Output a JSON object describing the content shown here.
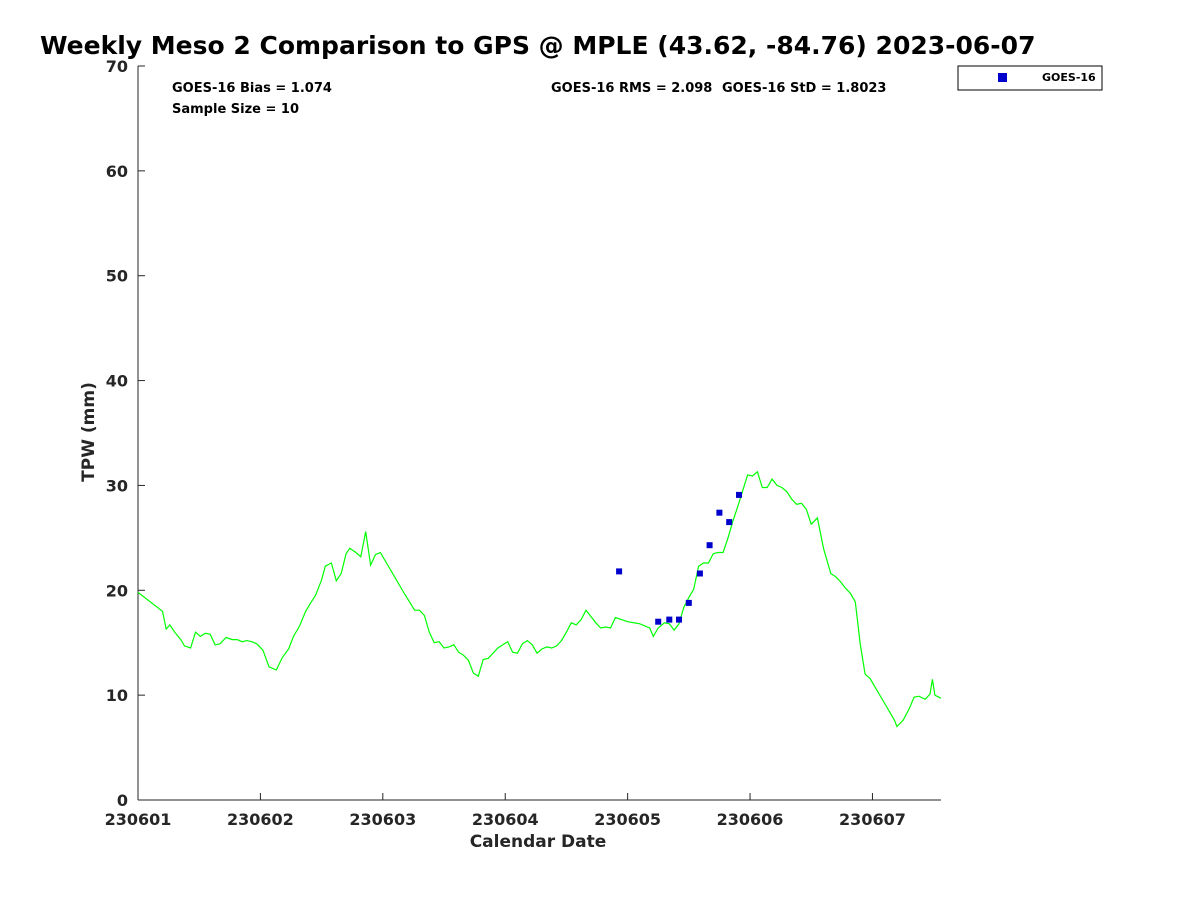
{
  "chart_data": {
    "type": "line",
    "title": "Weekly Meso 2 Comparison to GPS @ MPLE (43.62, -84.76) 2023-06-07",
    "xlabel": "Calendar Date",
    "ylabel": "TPW (mm)",
    "xlim": [
      230601,
      230607.56
    ],
    "ylim": [
      0,
      70
    ],
    "x_tick_values": [
      230601,
      230602,
      230603,
      230604,
      230605,
      230606,
      230607
    ],
    "x_tick_labels": [
      "230601",
      "230602",
      "230603",
      "230604",
      "230605",
      "230606",
      "230607"
    ],
    "y_tick_values": [
      0,
      10,
      20,
      30,
      40,
      50,
      60,
      70
    ],
    "y_tick_labels": [
      "0",
      "10",
      "20",
      "30",
      "40",
      "50",
      "60",
      "70"
    ],
    "grid": false,
    "legend_position": "top-right",
    "stats": {
      "bias": "GOES-16 Bias = 1.074",
      "rms": "GOES-16 RMS = 2.098",
      "std": "GOES-16 StD = 1.8023",
      "sample": "Sample Size = 10"
    },
    "series": [
      {
        "kind": "line",
        "color": "#00ff00",
        "points": [
          [
            230601.0,
            19.8
          ],
          [
            230601.2,
            18.0
          ],
          [
            230601.23,
            16.3
          ],
          [
            230601.26,
            16.7
          ],
          [
            230601.3,
            16.0
          ],
          [
            230601.35,
            15.3
          ],
          [
            230601.38,
            14.7
          ],
          [
            230601.43,
            14.5
          ],
          [
            230601.47,
            16.0
          ],
          [
            230601.51,
            15.6
          ],
          [
            230601.55,
            15.9
          ],
          [
            230601.59,
            15.8
          ],
          [
            230601.63,
            14.8
          ],
          [
            230601.67,
            14.9
          ],
          [
            230601.72,
            15.5
          ],
          [
            230601.77,
            15.3
          ],
          [
            230601.81,
            15.3
          ],
          [
            230601.85,
            15.1
          ],
          [
            230601.89,
            15.2
          ],
          [
            230601.93,
            15.1
          ],
          [
            230601.97,
            14.9
          ],
          [
            230602.02,
            14.3
          ],
          [
            230602.07,
            12.7
          ],
          [
            230602.13,
            12.4
          ],
          [
            230602.18,
            13.6
          ],
          [
            230602.23,
            14.4
          ],
          [
            230602.27,
            15.6
          ],
          [
            230602.32,
            16.6
          ],
          [
            230602.37,
            18.0
          ],
          [
            230602.41,
            18.8
          ],
          [
            230602.45,
            19.5
          ],
          [
            230602.5,
            21.0
          ],
          [
            230602.53,
            22.3
          ],
          [
            230602.58,
            22.6
          ],
          [
            230602.62,
            20.9
          ],
          [
            230602.66,
            21.6
          ],
          [
            230602.7,
            23.5
          ],
          [
            230602.73,
            24.0
          ],
          [
            230602.78,
            23.6
          ],
          [
            230602.82,
            23.2
          ],
          [
            230602.86,
            25.6
          ],
          [
            230602.9,
            22.4
          ],
          [
            230602.94,
            23.4
          ],
          [
            230602.98,
            23.6
          ],
          [
            230603.03,
            22.6
          ],
          [
            230603.1,
            21.2
          ],
          [
            230603.18,
            19.6
          ],
          [
            230603.26,
            18.1
          ],
          [
            230603.3,
            18.1
          ],
          [
            230603.34,
            17.6
          ],
          [
            230603.38,
            16.0
          ],
          [
            230603.42,
            15.0
          ],
          [
            230603.46,
            15.1
          ],
          [
            230603.5,
            14.5
          ],
          [
            230603.54,
            14.6
          ],
          [
            230603.58,
            14.8
          ],
          [
            230603.62,
            14.1
          ],
          [
            230603.66,
            13.8
          ],
          [
            230603.7,
            13.3
          ],
          [
            230603.74,
            12.1
          ],
          [
            230603.78,
            11.8
          ],
          [
            230603.82,
            13.4
          ],
          [
            230603.86,
            13.5
          ],
          [
            230603.9,
            14.0
          ],
          [
            230603.94,
            14.5
          ],
          [
            230603.98,
            14.8
          ],
          [
            230604.02,
            15.1
          ],
          [
            230604.06,
            14.1
          ],
          [
            230604.1,
            14.0
          ],
          [
            230604.14,
            14.9
          ],
          [
            230604.18,
            15.2
          ],
          [
            230604.22,
            14.8
          ],
          [
            230604.26,
            14.0
          ],
          [
            230604.3,
            14.4
          ],
          [
            230604.34,
            14.6
          ],
          [
            230604.38,
            14.5
          ],
          [
            230604.42,
            14.7
          ],
          [
            230604.46,
            15.2
          ],
          [
            230604.5,
            16.0
          ],
          [
            230604.54,
            16.9
          ],
          [
            230604.58,
            16.7
          ],
          [
            230604.62,
            17.2
          ],
          [
            230604.66,
            18.1
          ],
          [
            230604.7,
            17.5
          ],
          [
            230604.74,
            16.9
          ],
          [
            230604.78,
            16.4
          ],
          [
            230604.82,
            16.5
          ],
          [
            230604.86,
            16.4
          ],
          [
            230604.9,
            17.4
          ],
          [
            230604.95,
            17.2
          ],
          [
            230605.0,
            17.0
          ],
          [
            230605.1,
            16.8
          ],
          [
            230605.18,
            16.4
          ],
          [
            230605.21,
            15.6
          ],
          [
            230605.25,
            16.4
          ],
          [
            230605.3,
            16.9
          ],
          [
            230605.34,
            16.8
          ],
          [
            230605.38,
            16.2
          ],
          [
            230605.42,
            16.8
          ],
          [
            230605.46,
            18.4
          ],
          [
            230605.5,
            19.3
          ],
          [
            230605.54,
            20.1
          ],
          [
            230605.58,
            22.3
          ],
          [
            230605.62,
            22.6
          ],
          [
            230605.66,
            22.6
          ],
          [
            230605.7,
            23.5
          ],
          [
            230605.74,
            23.6
          ],
          [
            230605.78,
            23.6
          ],
          [
            230605.82,
            25.0
          ],
          [
            230605.86,
            26.6
          ],
          [
            230605.9,
            28.0
          ],
          [
            230605.94,
            29.5
          ],
          [
            230605.98,
            31.0
          ],
          [
            230606.02,
            30.9
          ],
          [
            230606.06,
            31.3
          ],
          [
            230606.1,
            29.8
          ],
          [
            230606.14,
            29.8
          ],
          [
            230606.18,
            30.6
          ],
          [
            230606.22,
            30.0
          ],
          [
            230606.26,
            29.8
          ],
          [
            230606.3,
            29.4
          ],
          [
            230606.34,
            28.7
          ],
          [
            230606.38,
            28.2
          ],
          [
            230606.42,
            28.3
          ],
          [
            230606.46,
            27.7
          ],
          [
            230606.5,
            26.3
          ],
          [
            230606.55,
            26.9
          ],
          [
            230606.6,
            24.0
          ],
          [
            230606.66,
            21.6
          ],
          [
            230606.7,
            21.3
          ],
          [
            230606.74,
            20.8
          ],
          [
            230606.78,
            20.2
          ],
          [
            230606.82,
            19.7
          ],
          [
            230606.86,
            18.9
          ],
          [
            230606.9,
            14.9
          ],
          [
            230606.94,
            12.0
          ],
          [
            230606.98,
            11.6
          ],
          [
            230607.02,
            10.8
          ],
          [
            230607.1,
            9.2
          ],
          [
            230607.18,
            7.6
          ],
          [
            230607.2,
            7.0
          ],
          [
            230607.25,
            7.6
          ],
          [
            230607.3,
            8.7
          ],
          [
            230607.34,
            9.8
          ],
          [
            230607.38,
            9.9
          ],
          [
            230607.43,
            9.6
          ],
          [
            230607.47,
            10.1
          ],
          [
            230607.49,
            11.5
          ],
          [
            230607.51,
            10.0
          ],
          [
            230607.56,
            9.7
          ]
        ]
      },
      {
        "name": "GOES-16",
        "kind": "scatter",
        "color": "#0000cc",
        "x": [
          230604.93,
          230605.25,
          230605.34,
          230605.42,
          230605.5,
          230605.59,
          230605.67,
          230605.75,
          230605.83,
          230605.91
        ],
        "y": [
          21.8,
          17.0,
          17.2,
          17.2,
          18.8,
          21.6,
          24.3,
          27.4,
          26.5,
          29.1
        ]
      }
    ]
  }
}
